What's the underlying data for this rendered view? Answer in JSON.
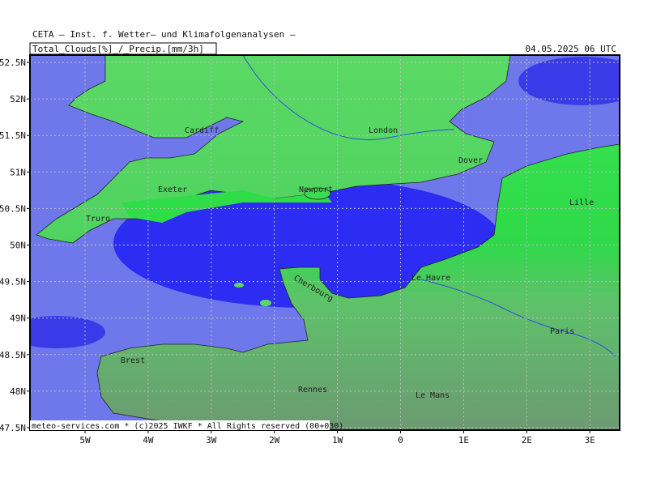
{
  "header": {
    "title": "CETA — Inst. f. Wetter— und Klimafolgenanalysen —",
    "field": "Total_Clouds[%]_/_Precip.[mm/3h]",
    "date": "04.05.2025 06 UTC"
  },
  "axes": {
    "lat_labels": [
      "52.5N",
      "52N",
      "51.5N",
      "51N",
      "50.5N",
      "50N",
      "49.5N",
      "49N",
      "48.5N",
      "48N",
      "47.5N"
    ],
    "lon_labels": [
      "5W",
      "4W",
      "3W",
      "2W",
      "1W",
      "0",
      "1E",
      "2E",
      "3E"
    ]
  },
  "places": [
    "Cardiff",
    "London",
    "Dover",
    "Exeter",
    "Newport",
    "Truro",
    "Lille",
    "Cherbourg",
    "Le Havre",
    "Brest",
    "Paris",
    "Rennes",
    "Le Mans"
  ],
  "footer": "meteo-services.com * (c)2025 IWKF * All Rights reserved (00+030)"
}
